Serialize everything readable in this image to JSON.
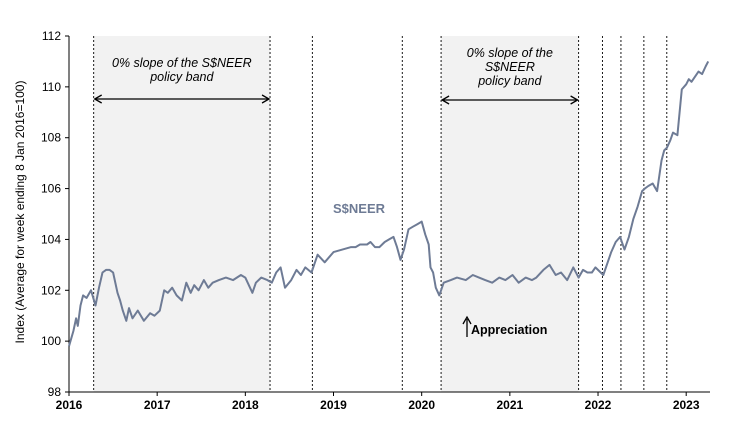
{
  "chart_data": {
    "type": "line",
    "ylabel": "Index (Average  for week ending 8 Jan 2016=100)",
    "ylim": [
      98,
      112
    ],
    "yticks": [
      "98",
      "100",
      "102",
      "104",
      "106",
      "108",
      "110",
      "112"
    ],
    "xlim": [
      2016,
      2023.27
    ],
    "xticks": [
      {
        "value": 2016,
        "label": "2016"
      },
      {
        "value": 2017,
        "label": "2017"
      },
      {
        "value": 2018,
        "label": "2018"
      },
      {
        "value": 2019,
        "label": "2019"
      },
      {
        "value": 2020,
        "label": "2020"
      },
      {
        "value": 2021,
        "label": "2021"
      },
      {
        "value": 2022,
        "label": "2022"
      },
      {
        "value": 2023,
        "label": "2023"
      }
    ],
    "series": [
      {
        "name": "S$NEER",
        "color": "#6e7b95",
        "x": [
          2016.0,
          2016.05,
          2016.08,
          2016.1,
          2016.13,
          2016.16,
          2016.2,
          2016.25,
          2016.3,
          2016.34,
          2016.38,
          2016.42,
          2016.46,
          2016.5,
          2016.55,
          2016.58,
          2016.61,
          2016.65,
          2016.68,
          2016.72,
          2016.78,
          2016.85,
          2016.92,
          2016.97,
          2017.03,
          2017.08,
          2017.12,
          2017.17,
          2017.22,
          2017.28,
          2017.33,
          2017.38,
          2017.42,
          2017.47,
          2017.53,
          2017.58,
          2017.63,
          2017.7,
          2017.78,
          2017.86,
          2017.95,
          2018.0,
          2018.08,
          2018.12,
          2018.18,
          2018.25,
          2018.3,
          2018.35,
          2018.4,
          2018.45,
          2018.52,
          2018.58,
          2018.63,
          2018.68,
          2018.75,
          2018.82,
          2018.9,
          2019.0,
          2019.1,
          2019.2,
          2019.25,
          2019.3,
          2019.38,
          2019.42,
          2019.47,
          2019.52,
          2019.58,
          2019.63,
          2019.68,
          2019.72,
          2019.76,
          2019.8,
          2019.85,
          2019.9,
          2019.95,
          2020.0,
          2020.04,
          2020.08,
          2020.1,
          2020.13,
          2020.16,
          2020.2,
          2020.25,
          2020.33,
          2020.4,
          2020.5,
          2020.58,
          2020.65,
          2020.72,
          2020.8,
          2020.88,
          2020.95,
          2021.03,
          2021.1,
          2021.18,
          2021.25,
          2021.3,
          2021.38,
          2021.45,
          2021.52,
          2021.58,
          2021.65,
          2021.72,
          2021.78,
          2021.83,
          2021.88,
          2021.93,
          2021.97,
          2022.0,
          2022.03,
          2022.06,
          2022.1,
          2022.15,
          2022.2,
          2022.25,
          2022.3,
          2022.35,
          2022.4,
          2022.45,
          2022.5,
          2022.53,
          2022.57,
          2022.62,
          2022.67,
          2022.72,
          2022.75,
          2022.78,
          2022.82,
          2022.85,
          2022.9,
          2022.95,
          2023.0,
          2023.03,
          2023.06,
          2023.1,
          2023.14,
          2023.18,
          2023.22,
          2023.25
        ],
        "values": [
          99.8,
          100.4,
          100.9,
          100.6,
          101.4,
          101.8,
          101.7,
          102.0,
          101.4,
          102.1,
          102.7,
          102.8,
          102.8,
          102.7,
          101.9,
          101.6,
          101.2,
          100.8,
          101.3,
          100.9,
          101.2,
          100.8,
          101.1,
          101.0,
          101.2,
          102.0,
          101.9,
          102.1,
          101.8,
          101.6,
          102.3,
          101.9,
          102.2,
          102.0,
          102.4,
          102.1,
          102.3,
          102.4,
          102.5,
          102.4,
          102.6,
          102.5,
          101.9,
          102.3,
          102.5,
          102.4,
          102.3,
          102.7,
          102.9,
          102.1,
          102.4,
          102.8,
          102.6,
          102.9,
          102.7,
          103.4,
          103.1,
          103.5,
          103.6,
          103.7,
          103.7,
          103.8,
          103.8,
          103.9,
          103.7,
          103.7,
          103.9,
          104.0,
          104.1,
          103.7,
          103.2,
          103.6,
          104.4,
          104.5,
          104.6,
          104.7,
          104.2,
          103.8,
          102.9,
          102.7,
          102.1,
          101.8,
          102.3,
          102.4,
          102.5,
          102.4,
          102.6,
          102.5,
          102.4,
          102.3,
          102.5,
          102.4,
          102.6,
          102.3,
          102.5,
          102.4,
          102.5,
          102.8,
          103.0,
          102.6,
          102.7,
          102.4,
          102.9,
          102.5,
          102.8,
          102.7,
          102.7,
          102.9,
          102.8,
          102.7,
          102.6,
          103.0,
          103.5,
          103.9,
          104.1,
          103.6,
          104.1,
          104.8,
          105.3,
          105.9,
          106.0,
          106.1,
          106.2,
          105.9,
          107.1,
          107.5,
          107.6,
          107.9,
          108.2,
          108.1,
          109.9,
          110.1,
          110.3,
          110.2,
          110.4,
          110.6,
          110.5,
          110.8,
          111.0
        ]
      }
    ],
    "shaded_bands": [
      {
        "start": 2016.28,
        "end": 2018.28
      },
      {
        "start": 2020.22,
        "end": 2021.78
      }
    ],
    "vertical_lines": [
      2016.28,
      2018.28,
      2018.76,
      2019.78,
      2020.22,
      2021.78,
      2022.05,
      2022.26,
      2022.52,
      2022.78
    ],
    "annotations": [
      {
        "text_lines": [
          "0% slope of the S$NEER",
          "policy band"
        ],
        "arrow_from": 2016.28,
        "arrow_to": 2018.28
      },
      {
        "text_lines": [
          "0% slope of the",
          "S$NEER",
          "policy band"
        ],
        "arrow_from": 2020.22,
        "arrow_to": 2021.78
      }
    ],
    "series_label": "S$NEER",
    "appreciation_label": "Appreciation",
    "grid": false,
    "legend": "none"
  }
}
